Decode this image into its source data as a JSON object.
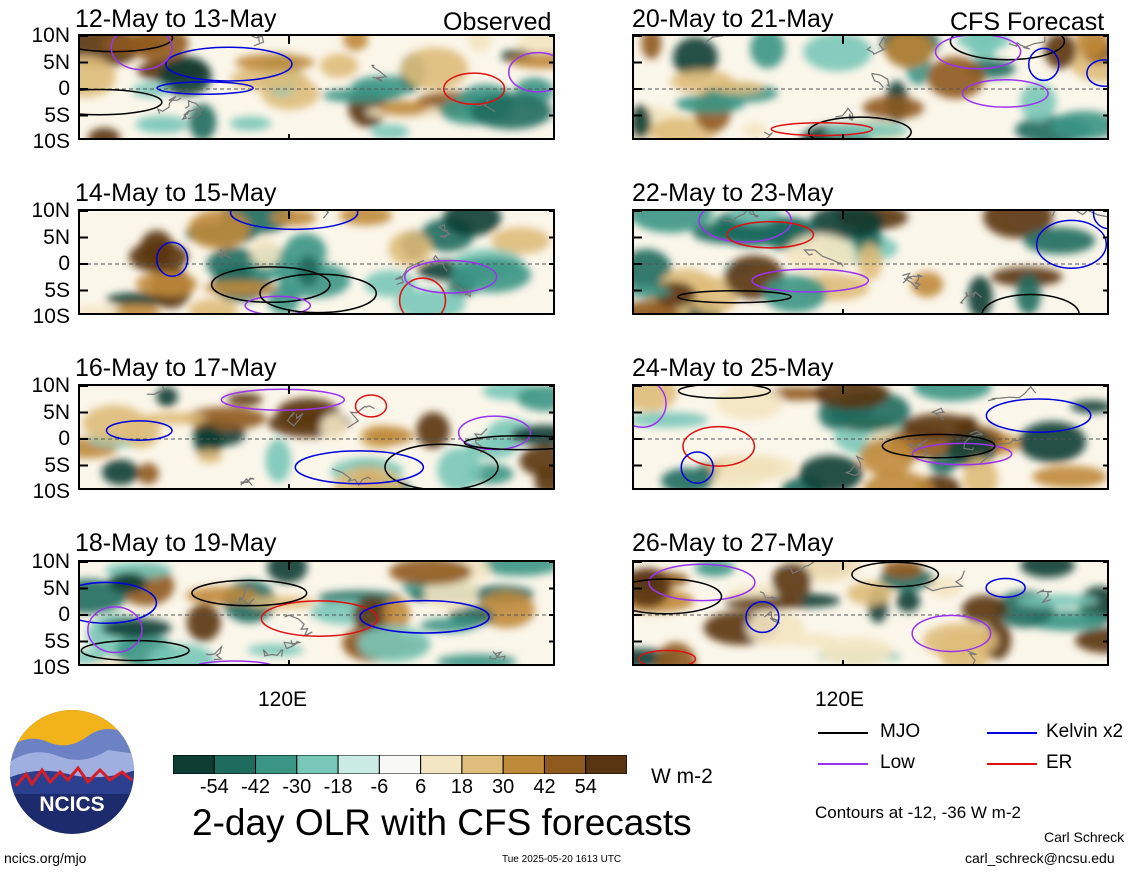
{
  "panels": {
    "left": [
      {
        "title": "12-May to 13-May",
        "tag": "Observed"
      },
      {
        "title": "14-May to 15-May",
        "tag": ""
      },
      {
        "title": "16-May to 17-May",
        "tag": ""
      },
      {
        "title": "18-May to 19-May",
        "tag": ""
      }
    ],
    "right": [
      {
        "title": "20-May to 21-May",
        "tag": "CFS Forecast"
      },
      {
        "title": "22-May to 23-May",
        "tag": ""
      },
      {
        "title": "24-May to 25-May",
        "tag": ""
      },
      {
        "title": "26-May to 27-May",
        "tag": ""
      }
    ]
  },
  "axes": {
    "lat_labels": [
      "10N",
      "5N",
      "0",
      "5S",
      "10S"
    ],
    "lon_label": "120E"
  },
  "colorbar": {
    "tick_labels": [
      "-54",
      "-42",
      "-30",
      "-18",
      "-6",
      "6",
      "18",
      "30",
      "42",
      "54"
    ],
    "unit": "W m-2",
    "colors": [
      "#0d3d33",
      "#1f6b5e",
      "#3b9585",
      "#79c7b8",
      "#c9ebe4",
      "#f8f8f6",
      "#f3e6c2",
      "#dfbd7a",
      "#c08a3b",
      "#8f5a1e",
      "#5a3512"
    ]
  },
  "main_title": "2-day OLR with CFS forecasts",
  "legend": {
    "items": [
      {
        "label": "MJO",
        "color": "#000000"
      },
      {
        "label": "Kelvin x2",
        "color": "#0000dd"
      },
      {
        "label": "Low",
        "color": "#9933ee"
      },
      {
        "label": "ER",
        "color": "#dd1111"
      }
    ],
    "contours_note": "Contours at -12, -36 W m-2"
  },
  "logo": {
    "text": "NCICS"
  },
  "credits": {
    "url": "ncics.org/mjo",
    "timestamp": "Tue 2025-05-20 1613 UTC",
    "author": "Carl Schreck",
    "email": "carl_schreck@ncsu.edu"
  }
}
